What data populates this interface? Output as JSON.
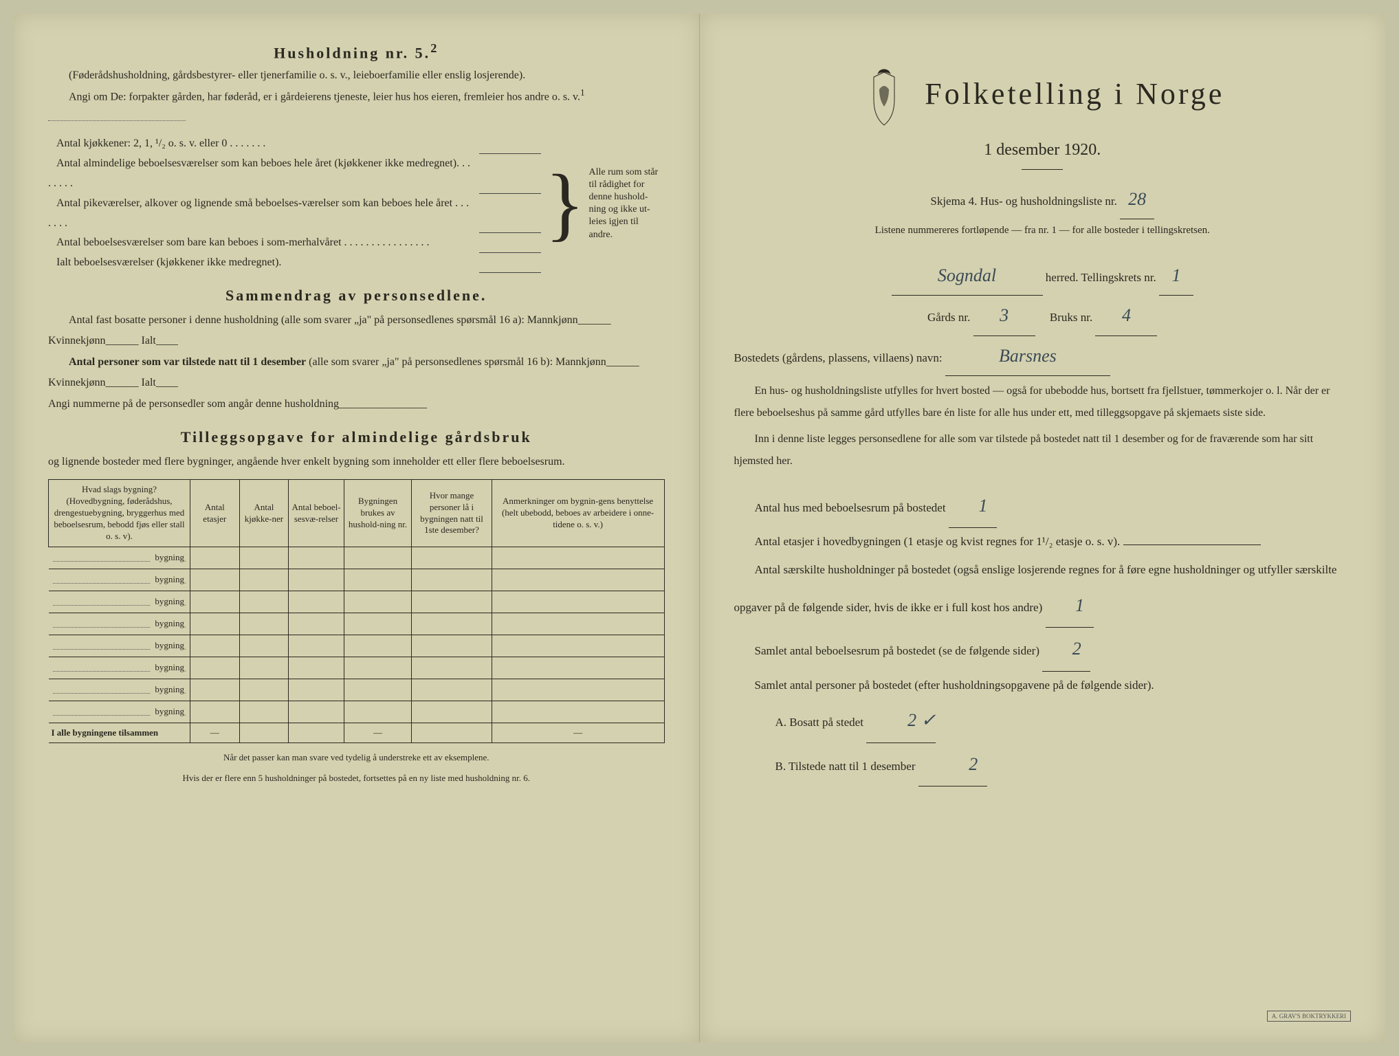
{
  "left": {
    "husholdning_title": "Husholdning nr. 5.",
    "husholdning_sup": "2",
    "husholdning_sub": "(Føderådshusholdning, gårdsbestyrer- eller tjenerfamilie o. s. v., leieboerfamilie eller enslig losjerende).",
    "angi_line": "Angi om De:  forpakter gården, har føderåd, er i gårdeierens tjeneste, leier hus hos eieren, fremleier hos andre o. s. v.",
    "angi_sup": "1",
    "kjokken_line": "Antal kjøkkener: 2, 1, ¹/₂ o. s. v. eller 0 . . . . . . .",
    "brace_rows": [
      "Antal almindelige beboelsesværelser som kan beboes hele året (kjøkkener ikke medregnet). . . . . . . .",
      "Antal pikeværelser, alkover og lignende små beboelses-værelser som kan beboes hele året . . . . . . .",
      "Antal beboelsesværelser som bare kan beboes i som-merhalvåret . . . . . . . . . . . . . . . .",
      "Ialt beboelsesværelser  (kjøkkener ikke medregnet)."
    ],
    "brace_right": "Alle rum som står til rådighet for denne hushold-ning og ikke ut-leies igjen til andre.",
    "sammendrag_title": "Sammendrag av personsedlene.",
    "sammendrag_p1": "Antal fast bosatte personer i denne husholdning (alle som svarer „ja\" på personsedlenes spørsmål 16 a): Mannkjønn______ Kvinnekjønn______ Ialt____",
    "sammendrag_p2_bold": "Antal personer som var tilstede natt til 1 desember",
    "sammendrag_p2_rest": " (alle som svarer „ja\" på personsedlenes spørsmål 16 b): Mannkjønn______ Kvinnekjønn______ Ialt____",
    "sammendrag_p3": "Angi nummerne på de personsedler som angår denne husholdning________________",
    "tillegg_title": "Tilleggsopgave for almindelige gårdsbruk",
    "tillegg_sub": "og lignende bosteder med flere bygninger, angående hver enkelt bygning som inneholder ett eller flere beboelsesrum.",
    "table_headers": [
      "Hvad slags bygning?\n(Hovedbygning, føderådshus, drengestuebygning, bryggerhus med beboelsesrum, bebodd fjøs eller stall o. s. v).",
      "Antal etasjer",
      "Antal kjøkke-ner",
      "Antal beboel-sesvæ-relser",
      "Bygningen brukes av hushold-ning nr.",
      "Hvor mange personer lå i bygningen natt til 1ste desember?",
      "Anmerkninger om bygnin-gens benyttelse (helt ubebodd, beboes av arbeidere i onne-tidene o. s. v.)"
    ],
    "table_row_label": "bygning",
    "table_rows": 8,
    "table_total": "I alle bygningene tilsammen",
    "footnote1": "Når det passer kan man svare ved tydelig å understreke ett av eksemplene.",
    "footnote2": "Hvis der er flere enn 5 husholdninger på bostedet, fortsettes på en ny liste med husholdning nr. 6."
  },
  "right": {
    "main_title": "Folketelling  i  Norge",
    "date": "1 desember 1920.",
    "skjema_line": "Skjema 4.   Hus- og husholdningsliste nr.",
    "skjema_nr": "28",
    "listene_line": "Listene nummereres fortløpende — fra nr. 1 — for alle bosteder i tellingskretsen.",
    "herred_value": "Sogndal",
    "herred_label": " herred.     Tellingskrets nr.",
    "tellingskrets_nr": "1",
    "gards_label": "Gårds nr.",
    "gards_nr": "3",
    "bruks_label": "Bruks nr.",
    "bruks_nr": "4",
    "bosted_label": "Bostedets (gårdens, plassens, villaens) navn:",
    "bosted_value": "Barsnes",
    "para1": "En hus- og husholdningsliste utfylles for hvert bosted — også for ubebodde hus, bortsett fra fjellstuer, tømmerkojer o. l.  Når der er flere beboelseshus på samme gård utfylles bare én liste for alle hus under ett, med tilleggsopgave på skjemaets siste side.",
    "para2": "Inn i denne liste legges personsedlene for alle som var tilstede på bostedet natt til 1 desember og for de fraværende som har sitt hjemsted her.",
    "q1": "Antal hus med beboelsesrum på bostedet",
    "q1_val": "1",
    "q2": "Antal etasjer i hovedbygningen (1 etasje og kvist regnes for 1¹/₂ etasje o. s. v).",
    "q3": "Antal særskilte husholdninger på bostedet (også enslige losjerende regnes for å føre egne husholdninger og utfyller særskilte opgaver på de følgende sider, hvis de ikke er i full kost hos andre)",
    "q3_val": "1",
    "q4": "Samlet antal beboelsesrum på bostedet (se de følgende sider)",
    "q4_val": "2",
    "q5": "Samlet antal personer på bostedet (efter husholdningsopgavene på de følgende sider).",
    "qA": "A.   Bosatt på stedet",
    "qA_val": "2 ✓",
    "qB": "B.   Tilstede natt til 1 desember",
    "qB_val": "2",
    "stamp": "A. GRAV'S BOKTRYKKERI"
  },
  "colors": {
    "paper": "#d4d1b0",
    "ink": "#2a2820",
    "handwriting": "#3a4a55"
  }
}
